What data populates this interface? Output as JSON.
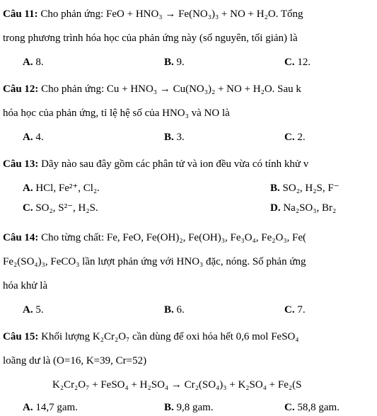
{
  "q11": {
    "label": "Câu 11:",
    "stem1": " Cho phản ứng: FeO + HNO₃ → Fe(NO₃)₃ + NO + H₂O. Tổng",
    "stem2": "trong phương trình hóa học của phản ứng này (số nguyên, tối giản) là",
    "a": "A.",
    "a_val": " 8.",
    "b": "B.",
    "b_val": " 9.",
    "c": "C.",
    "c_val": " 12."
  },
  "q12": {
    "label": "Câu 12:",
    "stem1": " Cho phản ứng: Cu + HNO₃ → Cu(NO₃)₂ + NO + H₂O. Sau k",
    "stem2": "hóa học của phản ứng, tỉ lệ hệ số của HNO₃ và NO là",
    "a": "A.",
    "a_val": " 4.",
    "b": "B.",
    "b_val": " 3.",
    "c": "C.",
    "c_val": " 2."
  },
  "q13": {
    "label": "Câu 13:",
    "stem1": " Dãy nào sau đây gồm các phân tử và ion đều vừa có tính khử v",
    "a": "A.",
    "a_val": " HCl, Fe²⁺, Cl₂.",
    "b": "B.",
    "b_val": " SO₂, H₂S, F⁻",
    "c": "C.",
    "c_val": " SO₂, S²⁻, H₂S.",
    "d": "D.",
    "d_val": " Na₂SO₃, Br₂"
  },
  "q14": {
    "label": "Câu 14:",
    "stem1": " Cho từng chất: Fe, FeO, Fe(OH)₂, Fe(OH)₃, Fe₃O₄, Fe₂O₃, Fe(",
    "stem2": "Fe₂(SO₄)₃, FeCO₃ lần lượt phản ứng với HNO₃ đặc, nóng. Số phản ứng",
    "stem3": "hóa khử là",
    "a": "A.",
    "a_val": " 5.",
    "b": "B.",
    "b_val": " 6.",
    "c": "C.",
    "c_val": " 7."
  },
  "q15": {
    "label": "Câu 15:",
    "stem1": " Khối lượng K₂Cr₂O₇ cần dùng để oxi hóa hết 0,6 mol FeSO₄",
    "stem2": "loãng dư là (O=16, K=39, Cr=52)",
    "eq": "K₂Cr₂O₇ + FeSO₄ + H₂SO₄ → Cr₂(SO₄)₃ + K₂SO₄ + Fe₂(S",
    "a": "A.",
    "a_val": " 14,7 gam.",
    "b": "B.",
    "b_val": " 9,8 gam.",
    "c": "C.",
    "c_val": " 58,8 gam."
  }
}
